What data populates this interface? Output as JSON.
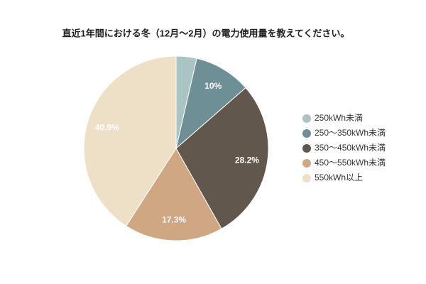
{
  "chart_data": {
    "type": "pie",
    "title": "直近1年間における冬（12月～2月）の電力使用量を教えてください。",
    "categories": [
      "250kWh未満",
      "250～350kWh未満",
      "350～450kWh未満",
      "450～550kWh未満",
      "550kWh以上"
    ],
    "values": [
      3.6,
      10,
      28.2,
      17.3,
      40.9
    ],
    "value_labels": [
      null,
      "10%",
      "28.2%",
      "17.3%",
      "40.9%"
    ],
    "colors": [
      "#a9c4c3",
      "#6d8f95",
      "#62574d",
      "#cfa783",
      "#ede0c6"
    ],
    "legend": "right"
  }
}
